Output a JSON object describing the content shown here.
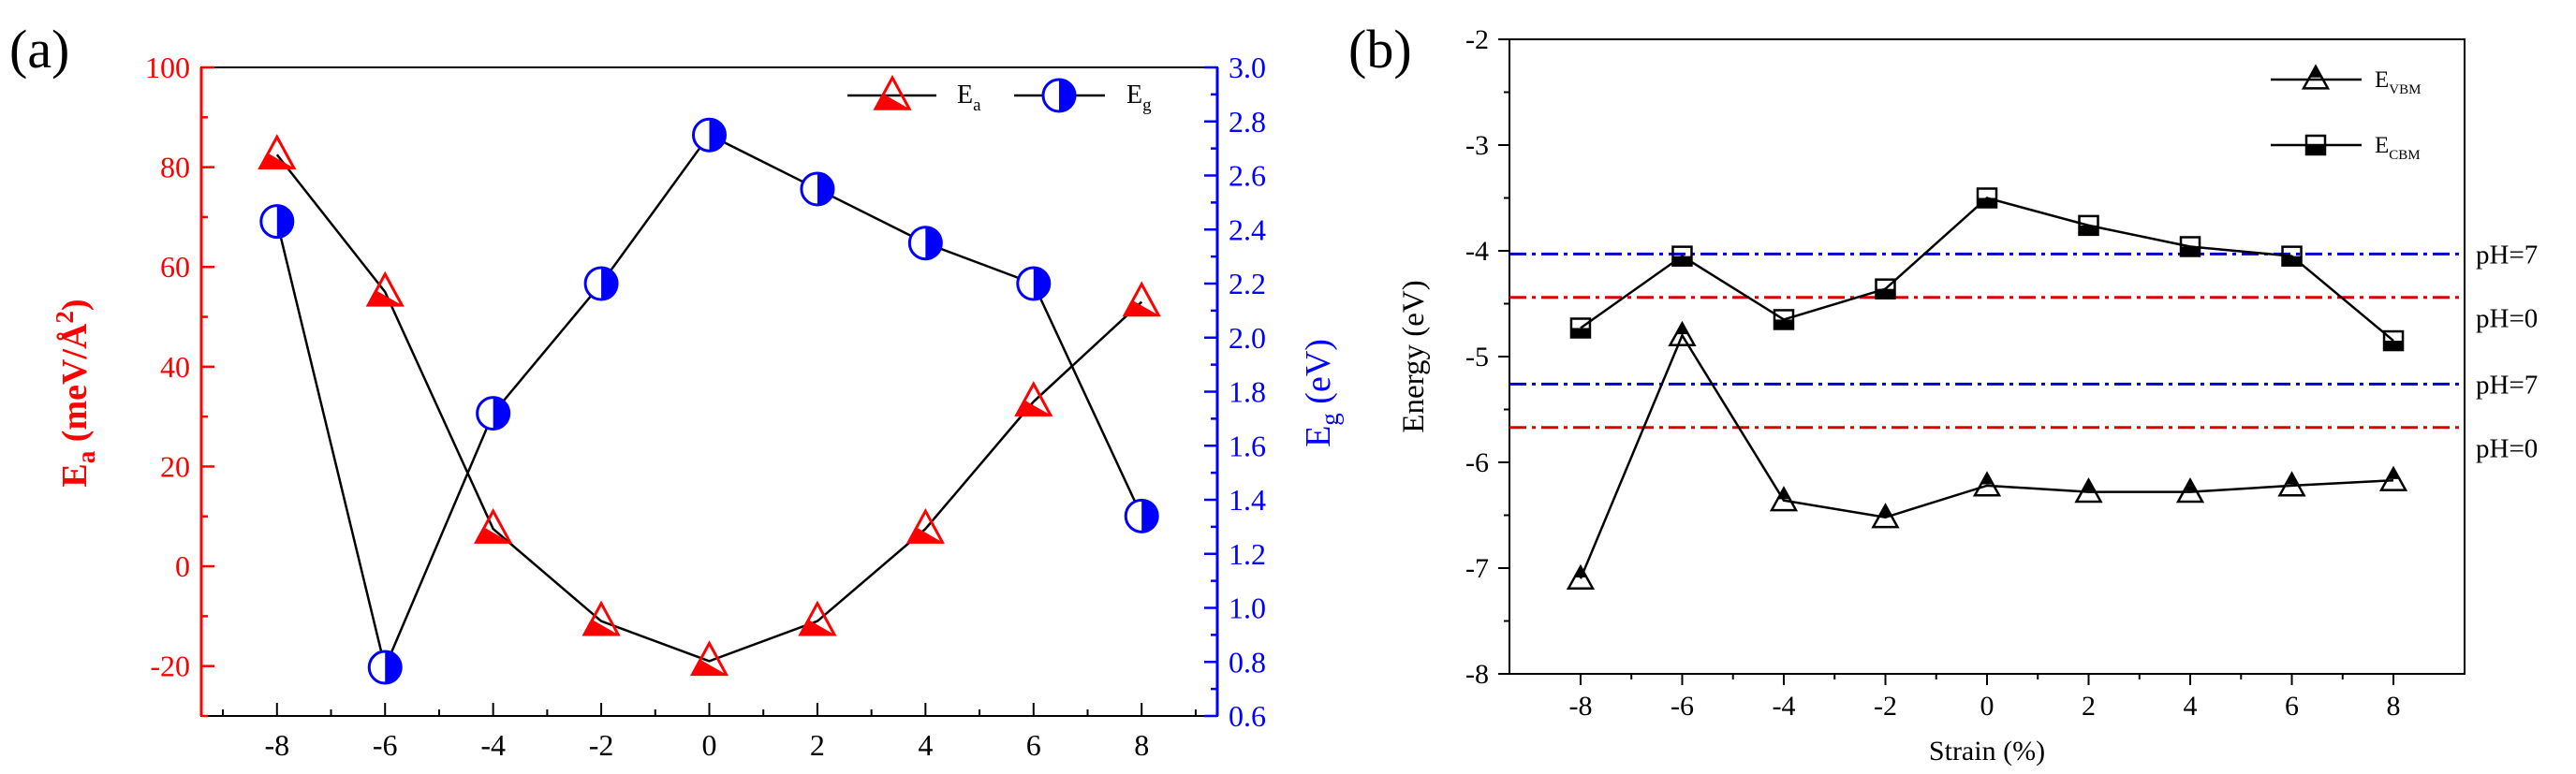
{
  "colors": {
    "ea": "#ff0000",
    "eg": "#0000ff",
    "black": "#000000",
    "ph7": "#0000cc",
    "ph0": "#dd0000"
  },
  "chart_data": [
    {
      "panel_label": "(a)",
      "type": "line",
      "x": [
        -8,
        -6,
        -4,
        -2,
        0,
        2,
        4,
        6,
        8
      ],
      "x_tick_labels": [
        "-8",
        "-6",
        "-4",
        "-2",
        "0",
        "2",
        "4",
        "6",
        "8"
      ],
      "xlim": [
        -9.4,
        9.4
      ],
      "y_left": {
        "label_main": "E",
        "label_sub": "a",
        "label_rest": " (meV/Å",
        "label_sup": "2",
        "label_end": ")",
        "lim": [
          -30,
          100
        ],
        "ticks": [
          -20,
          0,
          20,
          40,
          60,
          80,
          100
        ],
        "tick_labels": [
          "-20",
          "0",
          "20",
          "40",
          "60",
          "80",
          "100"
        ]
      },
      "y_right": {
        "label_main": "E",
        "label_sub": "g",
        "label_rest": " (eV)",
        "lim": [
          0.6,
          3.0
        ],
        "ticks": [
          0.6,
          0.8,
          1.0,
          1.2,
          1.4,
          1.6,
          1.8,
          2.0,
          2.2,
          2.4,
          2.6,
          2.8,
          3.0
        ],
        "tick_labels": [
          "0.6",
          "0.8",
          "1.0",
          "1.2",
          "1.4",
          "1.6",
          "1.8",
          "2.0",
          "2.2",
          "2.4",
          "2.6",
          "2.8",
          "3.0"
        ]
      },
      "series": [
        {
          "name": "Ea",
          "legend_main": "E",
          "legend_sub": "a",
          "axis": "left",
          "marker": "half-triangle",
          "values": [
            82.5,
            55,
            7.5,
            -11,
            -19,
            -11,
            7.5,
            33,
            53
          ]
        },
        {
          "name": "Eg",
          "legend_main": "E",
          "legend_sub": "g",
          "axis": "right",
          "marker": "half-circle",
          "values": [
            2.43,
            0.78,
            1.72,
            2.2,
            2.75,
            2.55,
            2.35,
            2.2,
            1.34
          ]
        }
      ]
    },
    {
      "panel_label": "(b)",
      "type": "line",
      "xlabel": "Strain (%)",
      "ylabel": "Energy  (eV)",
      "x": [
        -8,
        -6,
        -4,
        -2,
        0,
        2,
        4,
        6,
        8
      ],
      "x_tick_labels": [
        "-8",
        "-6",
        "-4",
        "-2",
        "0",
        "2",
        "4",
        "6",
        "8"
      ],
      "xlim": [
        -9.4,
        9.4
      ],
      "ylim": [
        -8,
        -2
      ],
      "y_ticks": [
        -8,
        -7,
        -6,
        -5,
        -4,
        -3,
        -2
      ],
      "y_tick_labels": [
        "-8",
        "-7",
        "-6",
        "-5",
        "-4",
        "-3",
        "-2"
      ],
      "series": [
        {
          "name": "EVBM",
          "legend_main": "E",
          "legend_sub": "VBM",
          "marker": "half-triangle-up",
          "values": [
            -7.1,
            -4.8,
            -6.36,
            -6.52,
            -6.22,
            -6.28,
            -6.28,
            -6.22,
            -6.17
          ]
        },
        {
          "name": "ECBM",
          "legend_main": "E",
          "legend_sub": "CBM",
          "marker": "half-square",
          "values": [
            -4.73,
            -4.05,
            -4.65,
            -4.36,
            -3.5,
            -3.76,
            -3.96,
            -4.05,
            -4.85
          ]
        }
      ],
      "reference_lines": [
        {
          "label": "pH=7",
          "y": -4.03,
          "color": "#0000cc"
        },
        {
          "label": "pH=0",
          "y": -4.44,
          "color": "#dd0000"
        },
        {
          "label": "pH=7",
          "y": -5.26,
          "color": "#0000cc"
        },
        {
          "label": "pH=0",
          "y": -5.67,
          "color": "#dd0000"
        }
      ]
    }
  ]
}
